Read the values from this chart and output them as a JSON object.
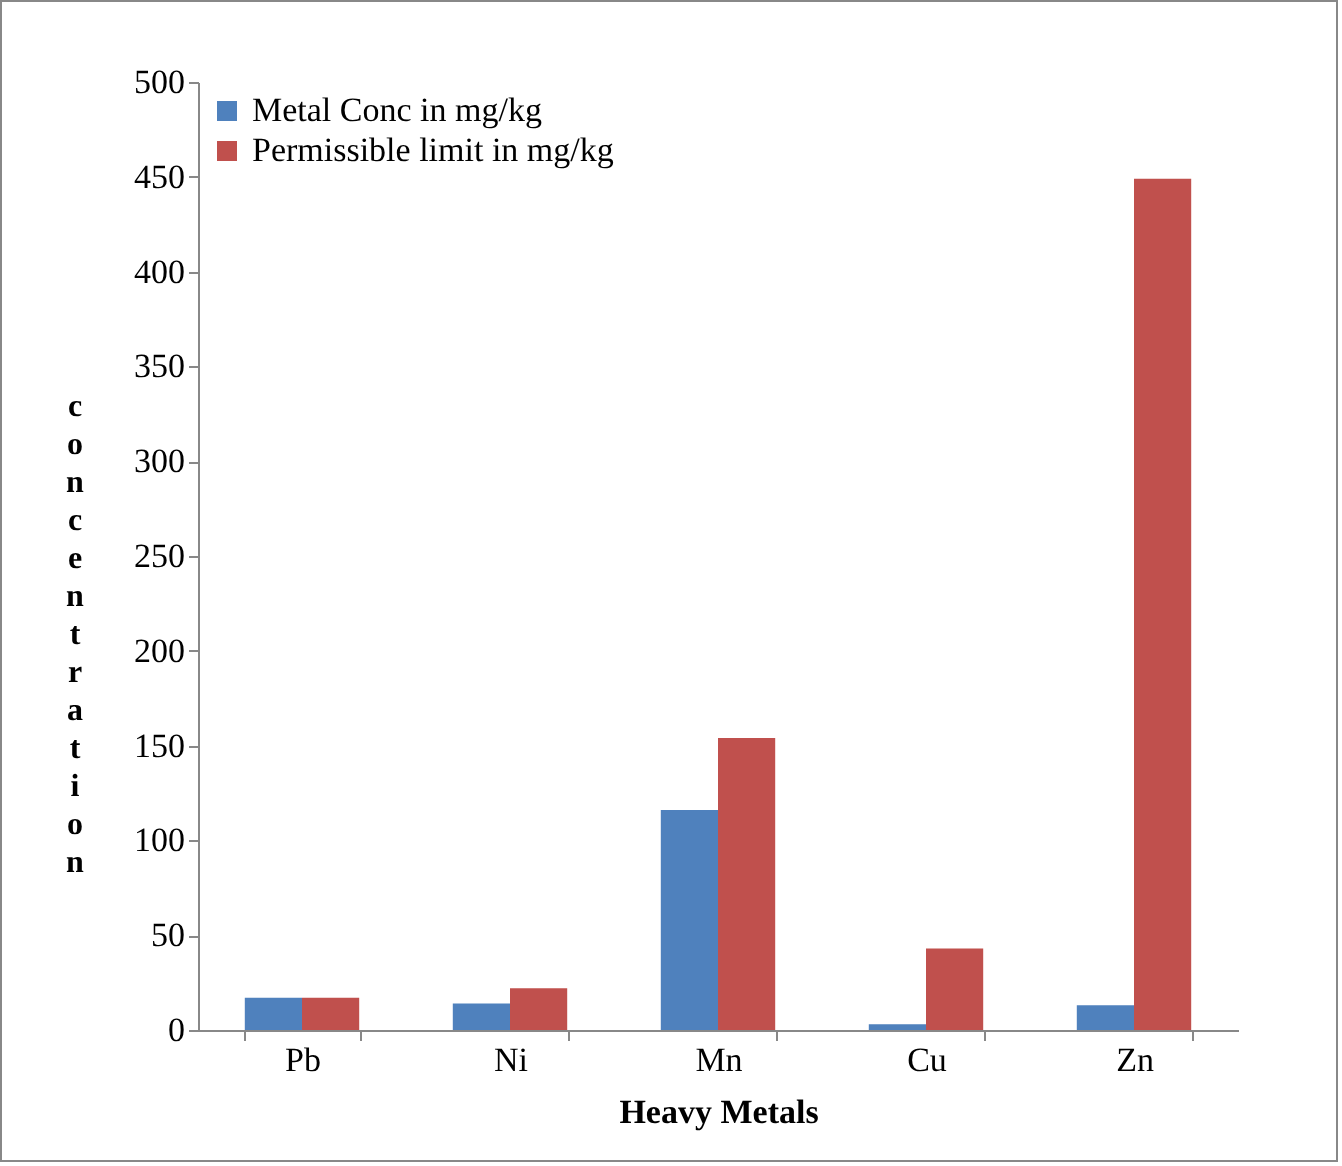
{
  "chart_data": {
    "type": "bar",
    "xlabel": "Heavy Metals",
    "ylabel": "concentration",
    "categories": [
      "Pb",
      "Ni",
      "Mn",
      "Cu",
      "Zn"
    ],
    "series": [
      {
        "name": "Metal Conc in mg/kg",
        "color": "#4f81bd",
        "values": [
          17,
          14,
          116,
          3,
          13
        ]
      },
      {
        "name": " Permissible limit in mg/kg",
        "color": "#c0504d",
        "values": [
          17,
          22,
          154,
          43,
          449
        ]
      }
    ],
    "ylim": [
      0,
      500
    ],
    "yticks": [
      0,
      50,
      100,
      150,
      200,
      250,
      300,
      350,
      400,
      450,
      500
    ],
    "grid": false,
    "legend": "top left"
  }
}
